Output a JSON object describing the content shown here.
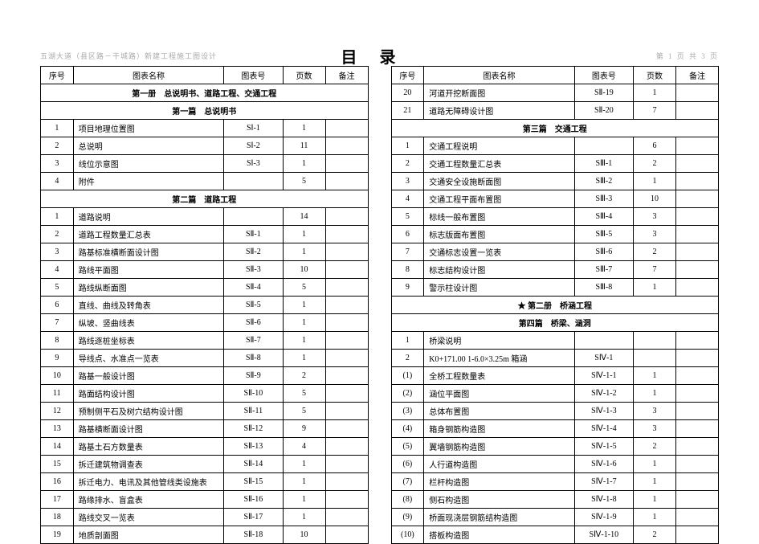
{
  "header_left": "五湖大道（县区路－干城路）新建工程施工图设计",
  "title": "目录",
  "header_right": "第 1 页  共 3 页",
  "columns": {
    "seq": "序号",
    "name": "图表名称",
    "code": "图表号",
    "page": "页数",
    "note": "备注"
  },
  "left": [
    {
      "type": "section",
      "star": false,
      "text": "第一册　总说明书、道路工程、交通工程"
    },
    {
      "type": "section",
      "star": false,
      "text": "第一篇　总说明书"
    },
    {
      "type": "row",
      "seq": "1",
      "name": "项目地理位置图",
      "code": "SⅠ-1",
      "page": "1",
      "note": ""
    },
    {
      "type": "row",
      "seq": "2",
      "name": "总说明",
      "code": "SⅠ-2",
      "page": "11",
      "note": ""
    },
    {
      "type": "row",
      "seq": "3",
      "name": "线位示意图",
      "code": "SⅠ-3",
      "page": "1",
      "note": ""
    },
    {
      "type": "row",
      "seq": "4",
      "name": "附件",
      "code": "",
      "page": "5",
      "note": ""
    },
    {
      "type": "section",
      "star": false,
      "text": "第二篇　道路工程"
    },
    {
      "type": "row",
      "seq": "1",
      "name": "道路说明",
      "code": "",
      "page": "14",
      "note": ""
    },
    {
      "type": "row",
      "seq": "2",
      "name": "道路工程数量汇总表",
      "code": "SⅡ-1",
      "page": "1",
      "note": ""
    },
    {
      "type": "row",
      "seq": "3",
      "name": "路基标准横断面设计图",
      "code": "SⅡ-2",
      "page": "1",
      "note": ""
    },
    {
      "type": "row",
      "seq": "4",
      "name": "路线平面图",
      "code": "SⅡ-3",
      "page": "10",
      "note": ""
    },
    {
      "type": "row",
      "seq": "5",
      "name": "路线纵断面图",
      "code": "SⅡ-4",
      "page": "5",
      "note": ""
    },
    {
      "type": "row",
      "seq": "6",
      "name": "直线、曲线及转角表",
      "code": "SⅡ-5",
      "page": "1",
      "note": ""
    },
    {
      "type": "row",
      "seq": "7",
      "name": "纵坡、竖曲线表",
      "code": "SⅡ-6",
      "page": "1",
      "note": ""
    },
    {
      "type": "row",
      "seq": "8",
      "name": "路线逐桩坐标表",
      "code": "SⅡ-7",
      "page": "1",
      "note": ""
    },
    {
      "type": "row",
      "seq": "9",
      "name": "导线点、水准点一览表",
      "code": "SⅡ-8",
      "page": "1",
      "note": ""
    },
    {
      "type": "row",
      "seq": "10",
      "name": "路基一般设计图",
      "code": "SⅡ-9",
      "page": "2",
      "note": ""
    },
    {
      "type": "row",
      "seq": "11",
      "name": "路面结构设计图",
      "code": "SⅡ-10",
      "page": "5",
      "note": ""
    },
    {
      "type": "row",
      "seq": "12",
      "name": "预制侧平石及树穴结构设计图",
      "code": "SⅡ-11",
      "page": "5",
      "note": ""
    },
    {
      "type": "row",
      "seq": "13",
      "name": "路基横断面设计图",
      "code": "SⅡ-12",
      "page": "9",
      "note": ""
    },
    {
      "type": "row",
      "seq": "14",
      "name": "路基土石方数量表",
      "code": "SⅡ-13",
      "page": "4",
      "note": ""
    },
    {
      "type": "row",
      "seq": "15",
      "name": "拆迁建筑物调查表",
      "code": "SⅡ-14",
      "page": "1",
      "note": ""
    },
    {
      "type": "row",
      "seq": "16",
      "name": "拆迁电力、电讯及其他管线类设施表",
      "code": "SⅡ-15",
      "page": "1",
      "note": ""
    },
    {
      "type": "row",
      "seq": "17",
      "name": "路缘排水、盲盒表",
      "code": "SⅡ-16",
      "page": "1",
      "note": ""
    },
    {
      "type": "row",
      "seq": "18",
      "name": "路线交叉一览表",
      "code": "SⅡ-17",
      "page": "1",
      "note": ""
    },
    {
      "type": "row",
      "seq": "19",
      "name": "地质剖面图",
      "code": "SⅡ-18",
      "page": "10",
      "note": ""
    }
  ],
  "right": [
    {
      "type": "row",
      "seq": "20",
      "name": "河道开挖断面图",
      "code": "SⅡ-19",
      "page": "1",
      "note": ""
    },
    {
      "type": "row",
      "seq": "21",
      "name": "道路无障碍设计图",
      "code": "SⅡ-20",
      "page": "7",
      "note": ""
    },
    {
      "type": "section",
      "star": false,
      "text": "第三篇　交通工程"
    },
    {
      "type": "row",
      "seq": "1",
      "name": "交通工程说明",
      "code": "",
      "page": "6",
      "note": ""
    },
    {
      "type": "row",
      "seq": "2",
      "name": "交通工程数量汇总表",
      "code": "SⅢ-1",
      "page": "2",
      "note": ""
    },
    {
      "type": "row",
      "seq": "3",
      "name": "交通安全设施断面图",
      "code": "SⅢ-2",
      "page": "1",
      "note": ""
    },
    {
      "type": "row",
      "seq": "4",
      "name": "交通工程平面布置图",
      "code": "SⅢ-3",
      "page": "10",
      "note": ""
    },
    {
      "type": "row",
      "seq": "5",
      "name": "标线一般布置图",
      "code": "SⅢ-4",
      "page": "3",
      "note": ""
    },
    {
      "type": "row",
      "seq": "6",
      "name": "标志版面布置图",
      "code": "SⅢ-5",
      "page": "3",
      "note": ""
    },
    {
      "type": "row",
      "seq": "7",
      "name": "交通标志设置一览表",
      "code": "SⅢ-6",
      "page": "2",
      "note": ""
    },
    {
      "type": "row",
      "seq": "8",
      "name": "标志结构设计图",
      "code": "SⅢ-7",
      "page": "7",
      "note": ""
    },
    {
      "type": "row",
      "seq": "9",
      "name": "警示柱设计图",
      "code": "SⅢ-8",
      "page": "1",
      "note": ""
    },
    {
      "type": "section",
      "star": true,
      "text": "第二册　桥涵工程"
    },
    {
      "type": "section",
      "star": false,
      "text": "第四篇　桥梁、涵洞"
    },
    {
      "type": "row",
      "seq": "1",
      "name": "桥梁说明",
      "code": "",
      "page": "",
      "note": ""
    },
    {
      "type": "row",
      "seq": "2",
      "name": "K0+171.00 1-6.0×3.25m 箱涵",
      "code": "SⅣ-1",
      "page": "",
      "note": ""
    },
    {
      "type": "row",
      "seq": "(1)",
      "name": "全桥工程数量表",
      "code": "SⅣ-1-1",
      "page": "1",
      "note": ""
    },
    {
      "type": "row",
      "seq": "(2)",
      "name": "涵位平面图",
      "code": "SⅣ-1-2",
      "page": "1",
      "note": ""
    },
    {
      "type": "row",
      "seq": "(3)",
      "name": "总体布置图",
      "code": "SⅣ-1-3",
      "page": "3",
      "note": ""
    },
    {
      "type": "row",
      "seq": "(4)",
      "name": "箱身钢筋构造图",
      "code": "SⅣ-1-4",
      "page": "3",
      "note": ""
    },
    {
      "type": "row",
      "seq": "(5)",
      "name": "翼墙钢筋构造图",
      "code": "SⅣ-1-5",
      "page": "2",
      "note": ""
    },
    {
      "type": "row",
      "seq": "(6)",
      "name": "人行道构造图",
      "code": "SⅣ-1-6",
      "page": "1",
      "note": ""
    },
    {
      "type": "row",
      "seq": "(7)",
      "name": "栏杆构造图",
      "code": "SⅣ-1-7",
      "page": "1",
      "note": ""
    },
    {
      "type": "row",
      "seq": "(8)",
      "name": "侧石构造图",
      "code": "SⅣ-1-8",
      "page": "1",
      "note": ""
    },
    {
      "type": "row",
      "seq": "(9)",
      "name": "桥面现浇层钢筋结构造图",
      "code": "SⅣ-1-9",
      "page": "1",
      "note": ""
    },
    {
      "type": "row",
      "seq": "(10)",
      "name": "搭板构造图",
      "code": "SⅣ-1-10",
      "page": "2",
      "note": ""
    }
  ]
}
